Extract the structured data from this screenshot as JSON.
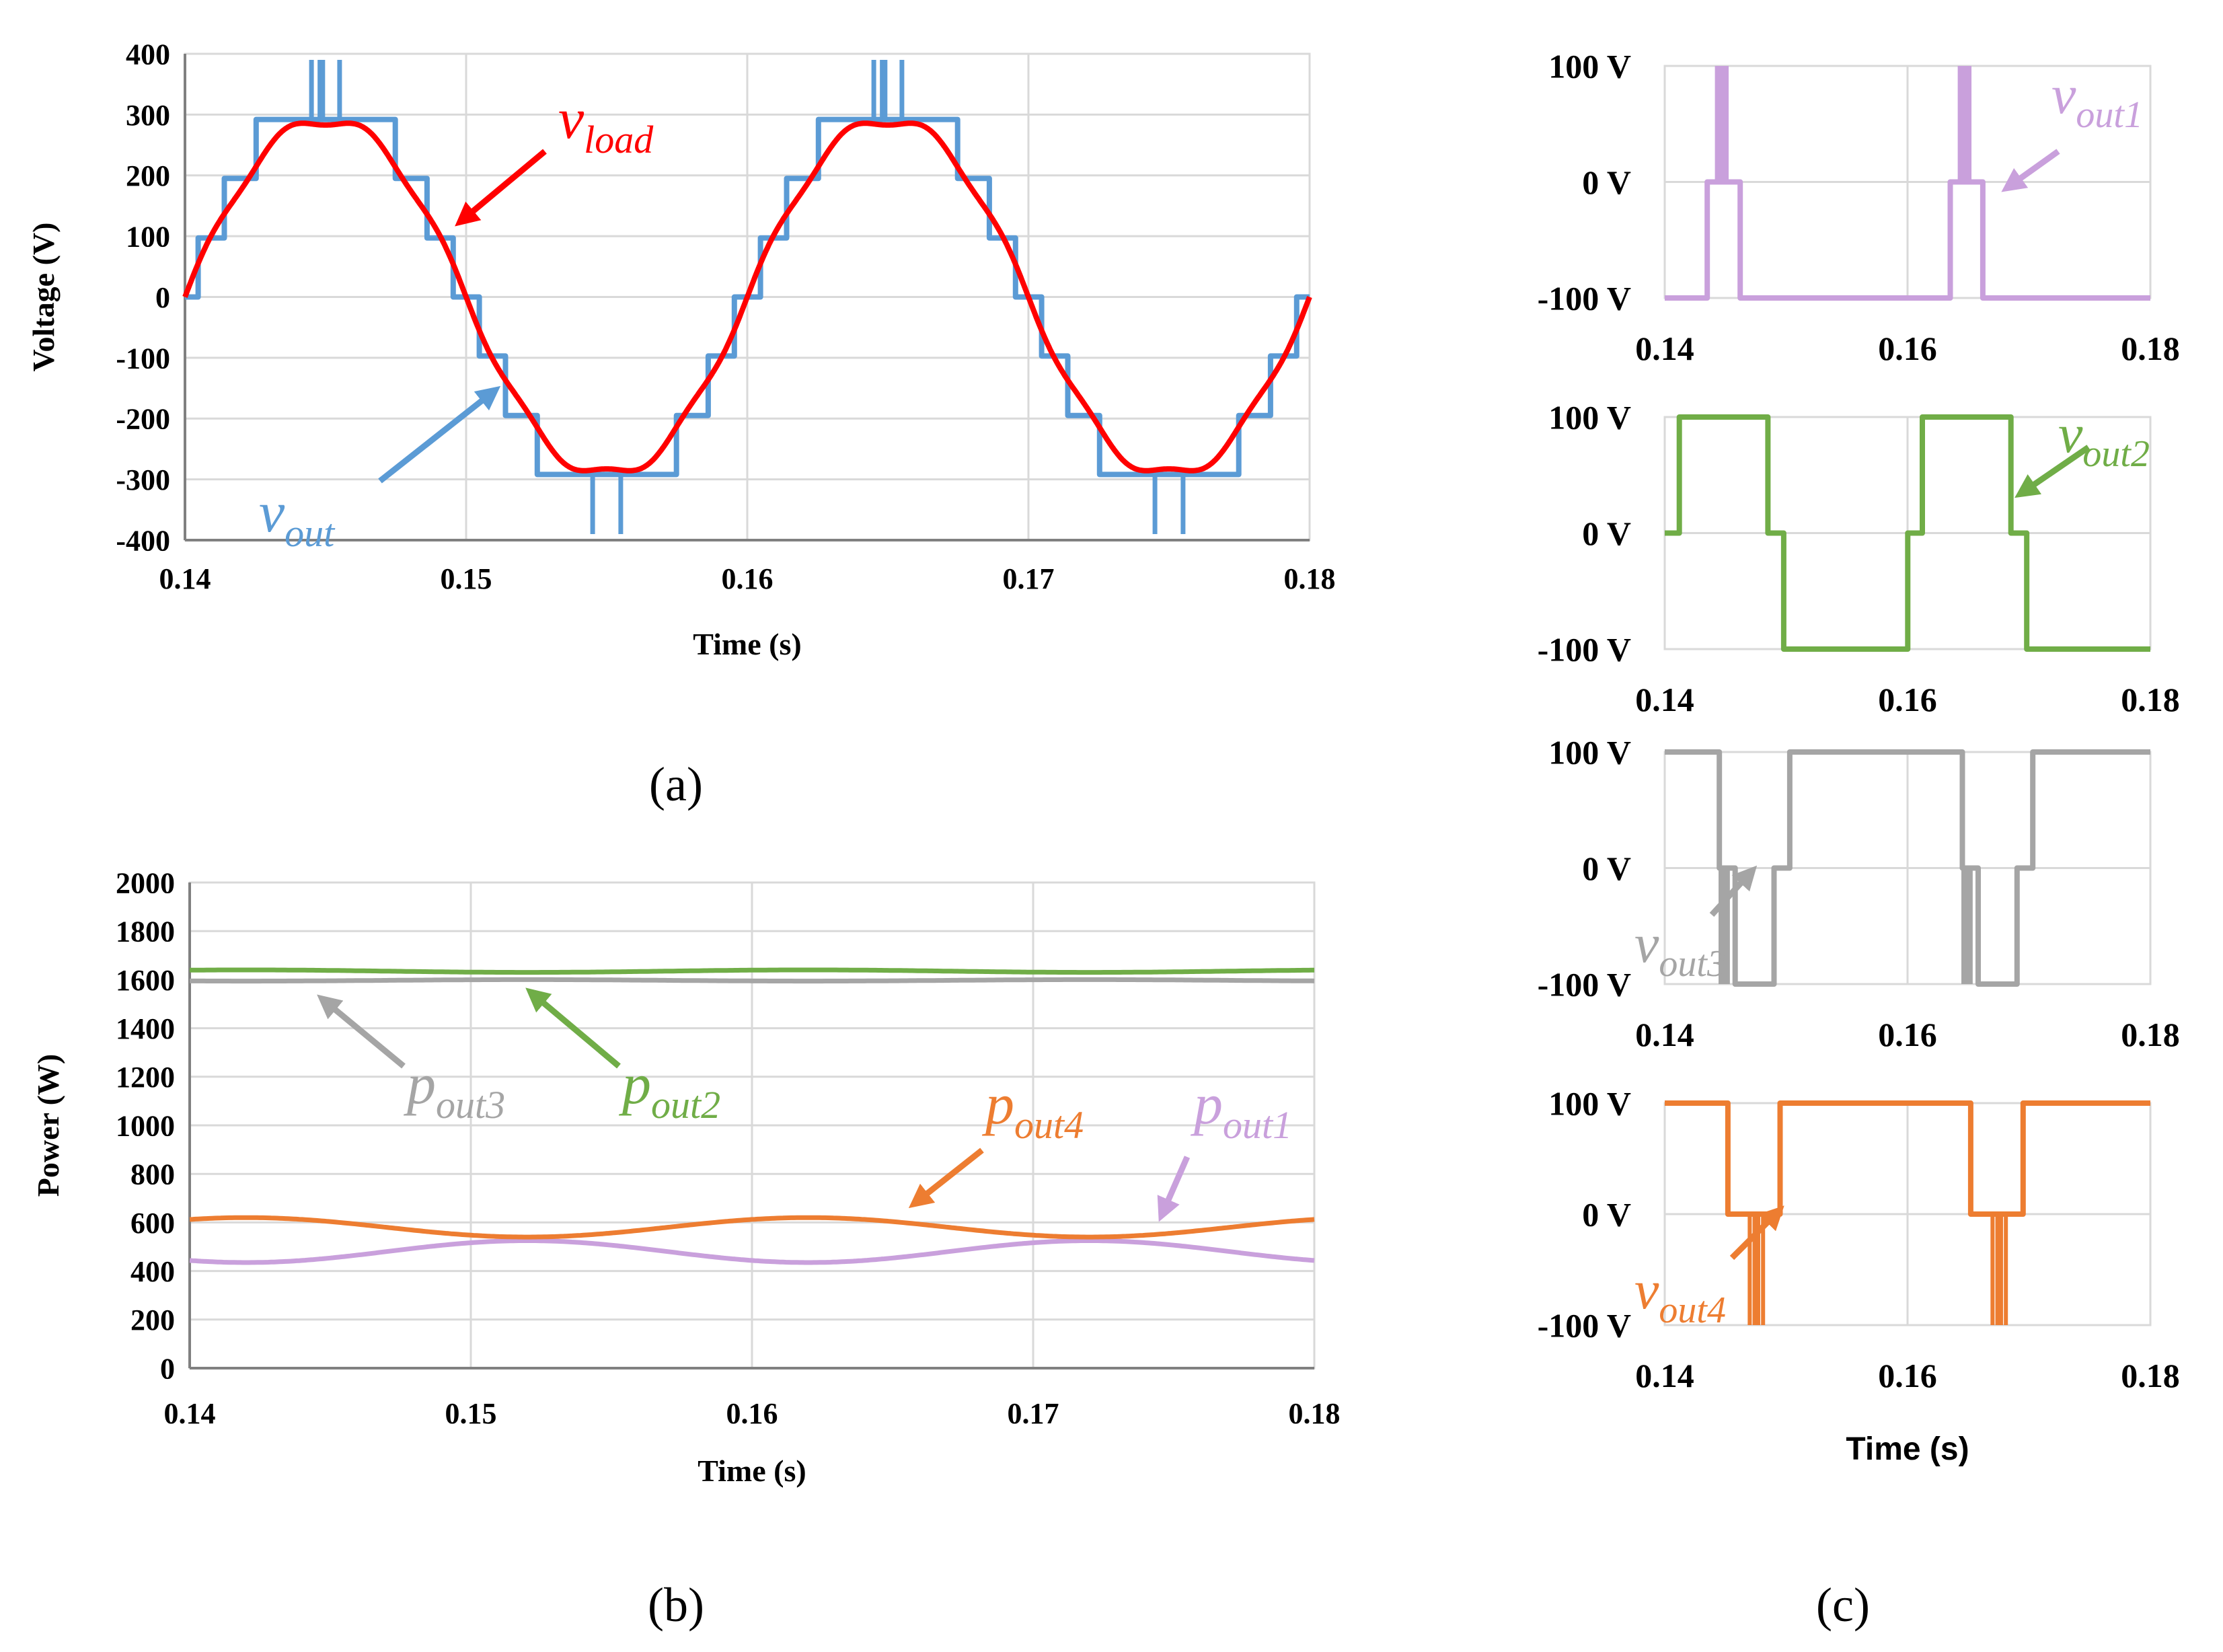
{
  "colors": {
    "vout": "#5B9BD5",
    "vload": "#FF0000",
    "pout1": "#C9A0DC",
    "pout2": "#70AD47",
    "pout3": "#A5A5A5",
    "pout4": "#ED7D31",
    "grid": "#D9D9D9"
  },
  "panels": {
    "a": "(a)",
    "b": "(b)",
    "c": "(c)"
  },
  "chart_data": [
    {
      "id": "a",
      "type": "line",
      "title": "",
      "xlabel": "Time (s)",
      "ylabel": "Voltage (V)",
      "xlim": [
        0.14,
        0.18
      ],
      "ylim": [
        -400,
        400
      ],
      "xticks": [
        "0.14",
        "0.15",
        "0.16",
        "0.17",
        "0.18"
      ],
      "yticks": [
        "400",
        "300",
        "200",
        "100",
        "0",
        "-100",
        "-200",
        "-300",
        "-400"
      ],
      "series": [
        {
          "name": "vout",
          "label_main": "v",
          "label_sub": "out",
          "color_key": "vout",
          "kind": "staircase",
          "period": 0.02,
          "start": 0.14,
          "levels": [
            0,
            97,
            195,
            292,
            390
          ],
          "spikes": [
            0.0045,
            0.0048,
            0.0052,
            0.0055,
            0.0148,
            0.0155
          ]
        },
        {
          "name": "vload",
          "label_main": "v",
          "label_sub": "load",
          "color_key": "vload",
          "kind": "filtered",
          "amplitude": 300
        }
      ]
    },
    {
      "id": "b",
      "type": "line",
      "title": "",
      "xlabel": "Time (s)",
      "ylabel": "Power (W)",
      "xlim": [
        0.14,
        0.18
      ],
      "ylim": [
        0,
        2000
      ],
      "xticks": [
        "0.14",
        "0.15",
        "0.16",
        "0.17",
        "0.18"
      ],
      "yticks": [
        "2000",
        "1800",
        "1600",
        "1400",
        "1200",
        "1000",
        "800",
        "600",
        "400",
        "200",
        "0"
      ],
      "series": [
        {
          "name": "pout1",
          "label_main": "p",
          "label_sub": "out1",
          "color_key": "pout1",
          "mean": 480,
          "amp": 45,
          "period": 0.02,
          "phase": 0.0,
          "sign": -1
        },
        {
          "name": "pout2",
          "label_main": "p",
          "label_sub": "out2",
          "color_key": "pout2",
          "mean": 1635,
          "amp": 5,
          "period": 0.02,
          "phase": 0.0,
          "sign": 1
        },
        {
          "name": "pout3",
          "label_main": "p",
          "label_sub": "out3",
          "color_key": "pout3",
          "mean": 1597,
          "amp": 3,
          "period": 0.02,
          "phase": 0.0,
          "sign": -1
        },
        {
          "name": "pout4",
          "label_main": "p",
          "label_sub": "out4",
          "color_key": "pout4",
          "mean": 580,
          "amp": 40,
          "period": 0.02,
          "phase": 0.0,
          "sign": 1
        }
      ]
    },
    {
      "id": "c1",
      "type": "line",
      "xlabel": "",
      "xlim": [
        0.14,
        0.18
      ],
      "ylim": [
        -100,
        100
      ],
      "xticks": [
        "0.14",
        "0.16",
        "0.18"
      ],
      "yticks": [
        "100 V",
        "0 V",
        "-100 V"
      ],
      "series": [
        {
          "name": "vout1",
          "label_main": "v",
          "label_sub": "out1",
          "color_key": "pout1"
        }
      ]
    },
    {
      "id": "c2",
      "type": "line",
      "xlabel": "",
      "xlim": [
        0.14,
        0.18
      ],
      "ylim": [
        -100,
        100
      ],
      "xticks": [
        "0.14",
        "0.16",
        "0.18"
      ],
      "yticks": [
        "100 V",
        "0 V",
        "-100 V"
      ],
      "series": [
        {
          "name": "vout2",
          "label_main": "v",
          "label_sub": "out2",
          "color_key": "pout2"
        }
      ]
    },
    {
      "id": "c3",
      "type": "line",
      "xlabel": "",
      "xlim": [
        0.14,
        0.18
      ],
      "ylim": [
        -100,
        100
      ],
      "xticks": [
        "0.14",
        "0.16",
        "0.18"
      ],
      "yticks": [
        "100 V",
        "0 V",
        "-100 V"
      ],
      "series": [
        {
          "name": "vout3",
          "label_main": "v",
          "label_sub": "out3",
          "color_key": "pout3"
        }
      ]
    },
    {
      "id": "c4",
      "type": "line",
      "xlabel": "Time (s)",
      "xlim": [
        0.14,
        0.18
      ],
      "ylim": [
        -100,
        100
      ],
      "xticks": [
        "0.14",
        "0.16",
        "0.18"
      ],
      "yticks": [
        "100 V",
        "0 V",
        "-100 V"
      ],
      "series": [
        {
          "name": "vout4",
          "label_main": "v",
          "label_sub": "out4",
          "color_key": "pout4"
        }
      ]
    }
  ]
}
